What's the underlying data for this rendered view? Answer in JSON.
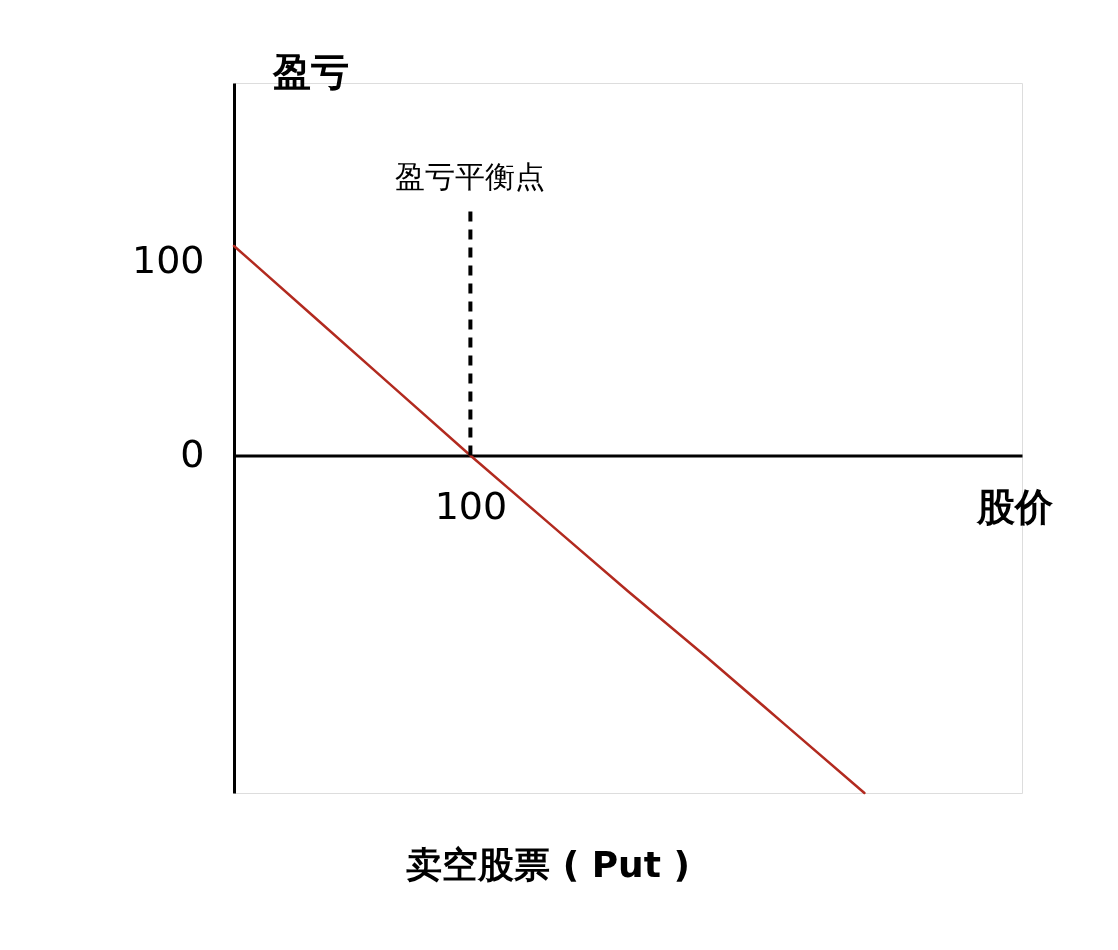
{
  "chart_data": {
    "type": "line",
    "title": "卖空股票 ( Put )",
    "xlabel": "股价",
    "ylabel": "盈亏",
    "categories": [
      null,
      null,
      null,
      "100",
      null,
      null,
      null,
      null,
      null
    ],
    "series": [
      {
        "color": "#b22a1f",
        "values": [
          108,
          72,
          36,
          0,
          -35,
          -70,
          -104,
          -139,
          -174
        ]
      }
    ],
    "ylim": [
      -174,
      192
    ],
    "yticks": [
      0,
      100
    ],
    "ref_lines": [
      {
        "axis": "x",
        "value": "100",
        "label": "盈亏平衡点",
        "color": "#000000",
        "line_style": "dashed"
      }
    ],
    "legend": false,
    "marker": "none",
    "line_style": "solid"
  }
}
